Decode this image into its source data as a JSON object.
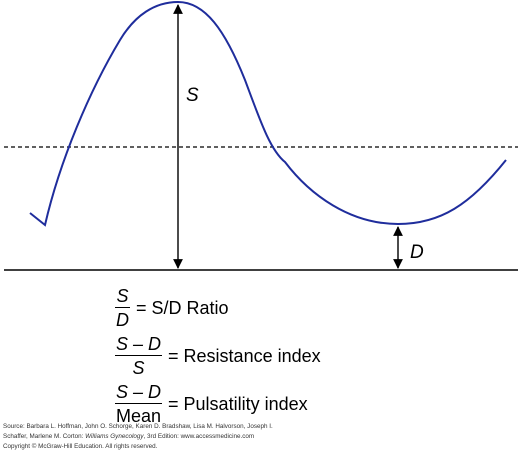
{
  "diagram": {
    "labels": {
      "systolic": "S",
      "diastolic": "D"
    },
    "colors": {
      "waveform": "#1f2d9c",
      "lines": "#000000"
    }
  },
  "formulas": [
    {
      "numerator": "S",
      "denominator": "D",
      "result": "= S/D Ratio"
    },
    {
      "numerator": "S – D",
      "denominator": "S",
      "result": "= Resistance index"
    },
    {
      "numerator": "S – D",
      "denominator": "Mean",
      "result": "= Pulsatility index"
    }
  ],
  "footer": {
    "line1": "Source: Barbara L. Hoffman, John O. Schorge, Karen D. Bradshaw, Lisa M. Halvorson, Joseph I.",
    "line2_prefix": "Schaffer, Marlene M. Corton: ",
    "line2_title": "Williams Gynecology",
    "line2_suffix": ", 3rd Edition: www.accessmedicine.com",
    "line3": "Copyright © McGraw-Hill Education. All rights reserved."
  }
}
